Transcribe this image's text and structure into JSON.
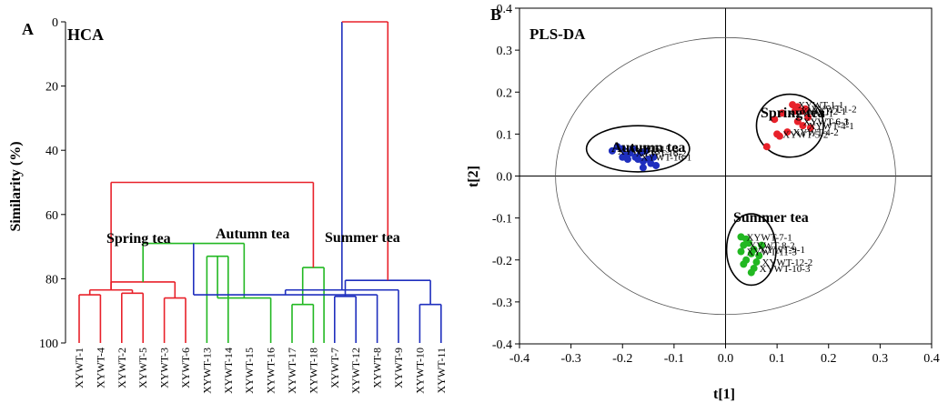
{
  "chart_data": [
    {
      "type": "dendrogram",
      "panel_label": "A",
      "title": "HCA",
      "ylabel": "Similarity (%)",
      "ylim": [
        0,
        100
      ],
      "yticks": [
        0,
        20,
        40,
        60,
        80,
        100
      ],
      "leaves": [
        "XYWT-1",
        "XYWT-4",
        "XYWT-2",
        "XYWT-5",
        "XYWT-3",
        "XYWT-6",
        "XYWT-13",
        "XYWT-14",
        "XYWT-15",
        "XYWT-16",
        "XYWT-17",
        "XYWT-18",
        "XYWT-7",
        "XYWT-12",
        "XYWT-8",
        "XYWT-9",
        "XYWT-10",
        "XYWT-11"
      ],
      "group_labels": [
        {
          "text": "Spring tea",
          "color": "#e8212a"
        },
        {
          "text": "Autumn tea",
          "color": "#22b822"
        },
        {
          "text": "Summer tea",
          "color": "#1f2fbe"
        }
      ],
      "merges": [
        {
          "a": 0,
          "b": 1,
          "h": 85,
          "color": "#e8212a"
        },
        {
          "a": 2,
          "b": 3,
          "h": 84.5,
          "color": "#e8212a"
        },
        {
          "a": 4,
          "b": 5,
          "h": 86,
          "color": "#e8212a"
        },
        {
          "a": 18,
          "b": 19,
          "h": 83.5,
          "color": "#e8212a"
        },
        {
          "a": 21,
          "b": 20,
          "h": 81,
          "color": "#e8212a"
        },
        {
          "a": 6,
          "b": 7,
          "h": 73,
          "color": "#22b822"
        },
        {
          "a": 10,
          "b": 11,
          "h": 88,
          "color": "#22b822"
        },
        {
          "a": 9,
          "b": 23,
          "h": 86,
          "color": "#22b822"
        },
        {
          "a": 24,
          "b": 11.5,
          "h": 76.5,
          "color": "#22b822"
        },
        {
          "a": 22,
          "b": 25,
          "h": 69,
          "color": "#22b822"
        },
        {
          "a": 12,
          "b": 13,
          "h": 85.5,
          "color": "#1f2fbe"
        },
        {
          "a": 27,
          "b": 14,
          "h": 85,
          "color": "#1f2fbe"
        },
        {
          "a": 16,
          "b": 17,
          "h": 88,
          "color": "#1f2fbe"
        },
        {
          "a": 15,
          "b": 29,
          "h": 83.5,
          "color": "#1f2fbe"
        },
        {
          "a": 28,
          "b": 30,
          "h": 80.5,
          "color": "#1f2fbe"
        },
        {
          "a": 21,
          "b": 26,
          "h": 50,
          "color": "#e8212a"
        },
        {
          "a": 32,
          "b": 31,
          "h": 0,
          "color": "#e8212a",
          "right_color": "#1f2fbe"
        }
      ]
    },
    {
      "type": "scatter",
      "panel_label": "B",
      "title": "PLS-DA",
      "xlabel": "t[1]",
      "ylabel": "t[2]",
      "xlim": [
        -0.4,
        0.4
      ],
      "ylim": [
        -0.4,
        0.4
      ],
      "xticks": [
        -0.4,
        -0.3,
        -0.2,
        -0.1,
        0.0,
        0.1,
        0.2,
        0.3,
        0.4
      ],
      "yticks": [
        0.4,
        0.3,
        0.2,
        0.1,
        0.0,
        -0.1,
        -0.2,
        -0.3,
        -0.4
      ],
      "tick_labels_x": [
        "-0.4",
        "-0.3",
        "-0.2",
        "-0.1",
        "0.0",
        "0.1",
        "0.2",
        "0.3",
        "0.4"
      ],
      "tick_labels_y": [
        "0.4",
        "0.3",
        "0.2",
        "0.1",
        "0.0",
        "-0.1",
        "-0.2",
        "-0.3",
        "-0.4"
      ],
      "hotelling_ellipse": {
        "cx": 0.0,
        "cy": 0.0,
        "rx": 0.33,
        "ry": 0.33
      },
      "groups": [
        {
          "name": "Spring tea",
          "color": "#e8212a",
          "ellipse": {
            "cx": 0.125,
            "cy": 0.12,
            "rx": 0.065,
            "ry": 0.075
          },
          "point_labels": [
            "XYWT-1-1",
            "XYWT-1-2",
            "XYWT-2-1",
            "XYWT-3-1",
            "XYWT-4-1",
            "XYWT-4-2",
            "XYWT-5-2",
            "XYWT-6-1",
            "XYWT-6-3"
          ],
          "points": [
            [
              0.13,
              0.17
            ],
            [
              0.14,
              0.165
            ],
            [
              0.155,
              0.16
            ],
            [
              0.15,
              0.155
            ],
            [
              0.135,
              0.155
            ],
            [
              0.16,
              0.14
            ],
            [
              0.11,
              0.15
            ],
            [
              0.095,
              0.135
            ],
            [
              0.15,
              0.12
            ],
            [
              0.165,
              0.115
            ],
            [
              0.12,
              0.105
            ],
            [
              0.105,
              0.095
            ],
            [
              0.1,
              0.1
            ],
            [
              0.08,
              0.07
            ],
            [
              0.14,
              0.13
            ]
          ]
        },
        {
          "name": "Autumn tea",
          "color": "#1f2fbe",
          "ellipse": {
            "cx": -0.17,
            "cy": 0.065,
            "rx": 0.1,
            "ry": 0.055
          },
          "point_labels": [
            "XYWT-13",
            "XYWT-15-3",
            "XYWT-16-2",
            "XYWT-16-1"
          ],
          "points": [
            [
              -0.22,
              0.06
            ],
            [
              -0.21,
              0.07
            ],
            [
              -0.2,
              0.065
            ],
            [
              -0.195,
              0.05
            ],
            [
              -0.185,
              0.055
            ],
            [
              -0.18,
              0.065
            ],
            [
              -0.175,
              0.045
            ],
            [
              -0.17,
              0.04
            ],
            [
              -0.165,
              0.055
            ],
            [
              -0.16,
              0.035
            ],
            [
              -0.155,
              0.06
            ],
            [
              -0.15,
              0.04
            ],
            [
              -0.145,
              0.03
            ],
            [
              -0.14,
              0.045
            ],
            [
              -0.135,
              0.025
            ],
            [
              -0.16,
              0.02
            ],
            [
              -0.19,
              0.04
            ],
            [
              -0.2,
              0.045
            ]
          ]
        },
        {
          "name": "Summer tea",
          "color": "#22b822",
          "ellipse": {
            "cx": 0.05,
            "cy": -0.175,
            "rx": 0.048,
            "ry": 0.085
          },
          "point_labels": [
            "XYWT-7-1",
            "XYWT-8-2",
            "XYWT-11-3",
            "XYWT-9-1",
            "XYWT-12-2",
            "XYWT-10-3"
          ],
          "points": [
            [
              0.03,
              -0.145
            ],
            [
              0.04,
              -0.15
            ],
            [
              0.035,
              -0.165
            ],
            [
              0.045,
              -0.16
            ],
            [
              0.03,
              -0.18
            ],
            [
              0.05,
              -0.185
            ],
            [
              0.055,
              -0.175
            ],
            [
              0.04,
              -0.2
            ],
            [
              0.06,
              -0.205
            ],
            [
              0.065,
              -0.19
            ],
            [
              0.055,
              -0.22
            ],
            [
              0.05,
              -0.23
            ],
            [
              0.035,
              -0.21
            ],
            [
              0.07,
              -0.165
            ]
          ],
          "point_outline": "#1f2fbe"
        }
      ],
      "grid": false,
      "reference_lines": "x=0 and y=0"
    }
  ]
}
